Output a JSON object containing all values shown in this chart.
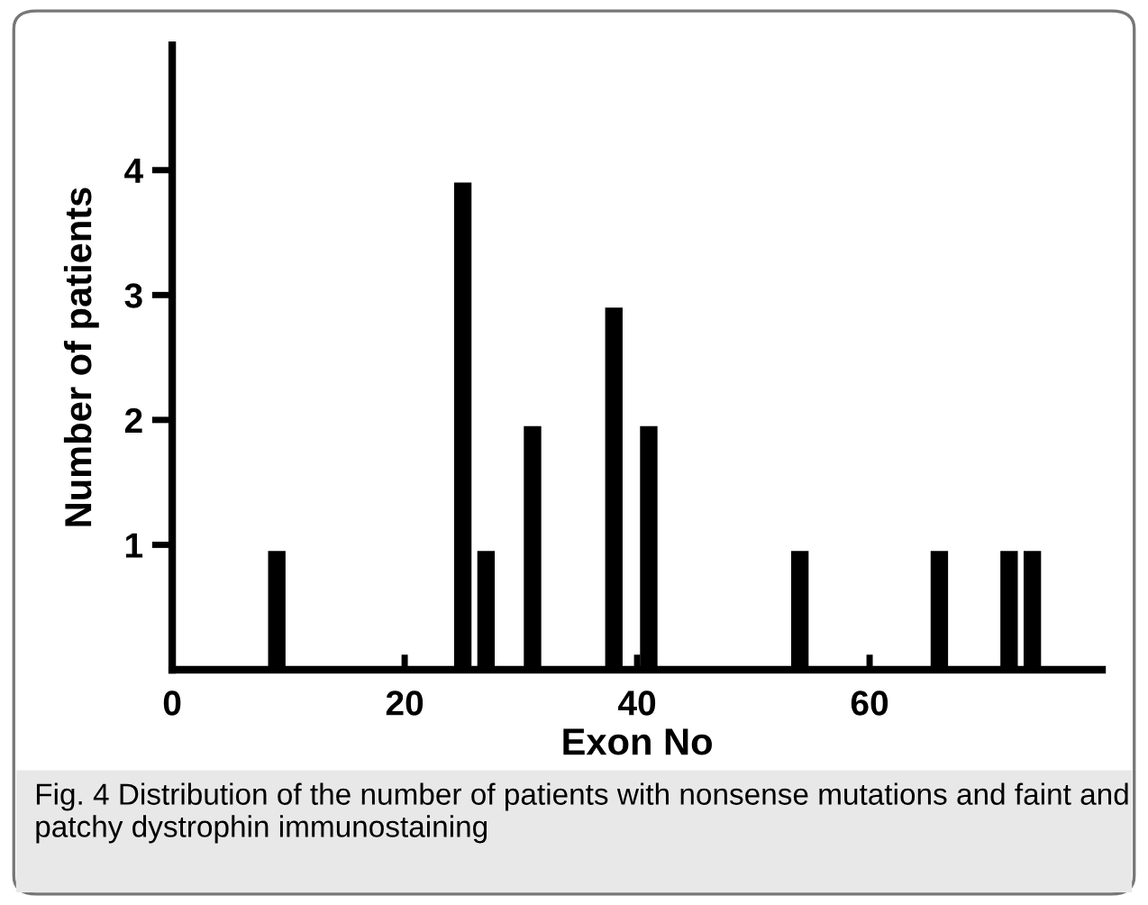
{
  "chart_data": {
    "type": "bar",
    "xlabel": "Exon No",
    "ylabel": "Number of patients",
    "x": [
      9,
      25,
      27,
      31,
      38,
      41,
      54,
      66,
      72,
      74
    ],
    "values": [
      0.95,
      3.9,
      0.95,
      1.95,
      2.9,
      1.95,
      0.95,
      0.95,
      0.95,
      0.95
    ],
    "color": "#000000",
    "xlim": [
      0,
      80
    ],
    "xticks": [
      0,
      20,
      40,
      60
    ],
    "ylim": [
      0,
      5
    ],
    "yticks": [
      1,
      2,
      3,
      4
    ],
    "grid": false,
    "legend": false,
    "annotations": [
      "Fig. 4 Distribution of the number of patients with nonsense mutations and faint and patchy dystrophin immunostaining"
    ]
  }
}
